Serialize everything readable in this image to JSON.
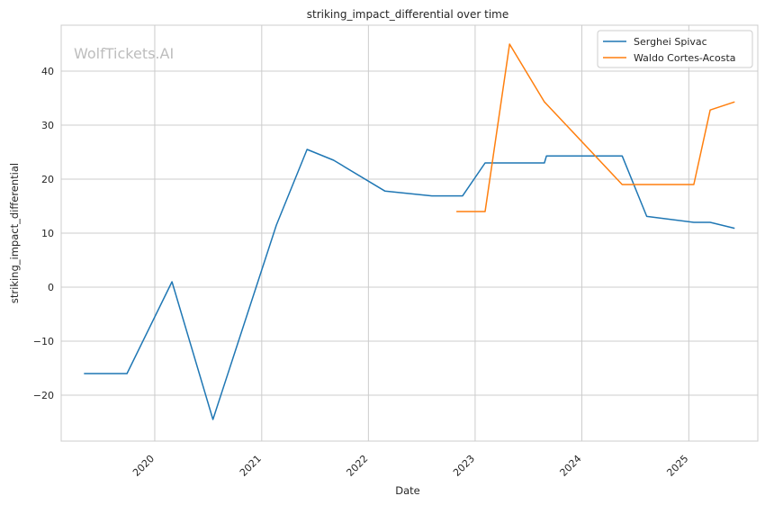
{
  "chart_data": {
    "type": "line",
    "title": "striking_impact_differential over time",
    "xlabel": "Date",
    "ylabel": "striking_impact_differential",
    "watermark": "WolfTickets.AI",
    "x_ticks": [
      "2020",
      "2021",
      "2022",
      "2023",
      "2024",
      "2025"
    ],
    "y_ticks": [
      -20,
      -10,
      0,
      10,
      20,
      30,
      40
    ],
    "xlim": [
      "2019-02-15",
      "2025-08-25"
    ],
    "ylim": [
      -28.5,
      48.5
    ],
    "grid": true,
    "legend_position": "top-right",
    "series": [
      {
        "name": "Serghei Spivac",
        "color": "#1f77b4",
        "points": [
          [
            "2019-05-04",
            -16
          ],
          [
            "2019-09-28",
            -16
          ],
          [
            "2020-02-29",
            1
          ],
          [
            "2020-07-18",
            -24.5
          ],
          [
            "2021-02-20",
            11.5
          ],
          [
            "2021-06-05",
            25.5
          ],
          [
            "2021-09-04",
            23.5
          ],
          [
            "2022-02-26",
            17.8
          ],
          [
            "2022-08-06",
            16.9
          ],
          [
            "2022-11-19",
            16.9
          ],
          [
            "2023-02-04",
            23
          ],
          [
            "2023-08-26",
            23
          ],
          [
            "2023-09-02",
            24.3
          ],
          [
            "2024-05-18",
            24.3
          ],
          [
            "2024-08-10",
            13.1
          ],
          [
            "2025-01-18",
            12
          ],
          [
            "2025-03-15",
            12
          ],
          [
            "2025-06-07",
            10.9
          ]
        ]
      },
      {
        "name": "Waldo Cortes-Acosta",
        "color": "#ff7f0e",
        "points": [
          [
            "2022-10-29",
            14
          ],
          [
            "2023-02-04",
            14
          ],
          [
            "2023-04-29",
            45
          ],
          [
            "2023-08-26",
            34.3
          ],
          [
            "2023-09-02",
            33.9
          ],
          [
            "2024-05-18",
            19
          ],
          [
            "2025-01-18",
            19
          ],
          [
            "2025-03-15",
            32.8
          ],
          [
            "2025-06-07",
            34.3
          ]
        ]
      }
    ]
  }
}
